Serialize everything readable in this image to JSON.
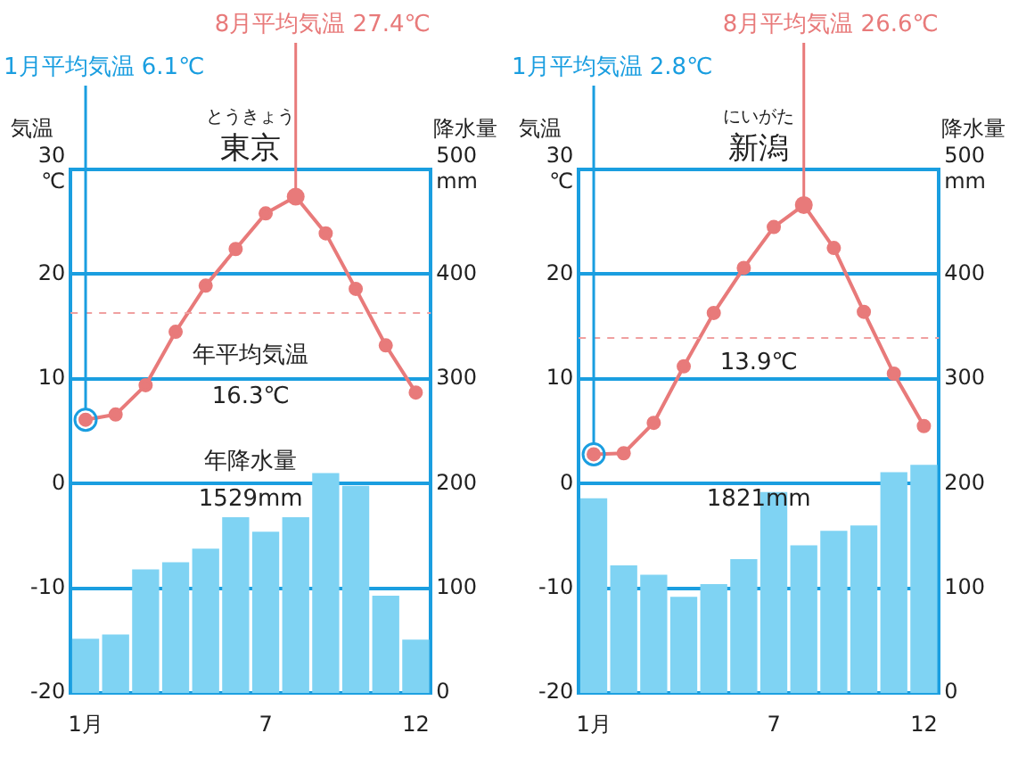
{
  "chart_data": [
    {
      "type": "bar",
      "subtitle": "とうきょう",
      "title": "東京",
      "ylabel": "気温",
      "y2label": "降水量",
      "categories": [
        "1月",
        null,
        null,
        null,
        null,
        null,
        "7",
        null,
        null,
        null,
        null,
        "12"
      ],
      "series": [
        {
          "axis": "y2",
          "color": "#7fd3f3",
          "values": [
            52,
            56,
            118,
            125,
            138,
            168,
            154,
            168,
            210,
            198,
            93,
            51
          ]
        },
        {
          "type": "line",
          "color": "#e87a7a",
          "values": [
            6.1,
            6.6,
            9.4,
            14.5,
            18.9,
            22.4,
            25.8,
            27.4,
            23.9,
            18.6,
            13.2,
            8.7
          ]
        }
      ],
      "ylim": [
        -20,
        30
      ],
      "yticks": [
        -20,
        -10,
        0,
        10,
        20,
        {
          "value": 30,
          "label": "30\n℃"
        }
      ],
      "y2lim": [
        0,
        500
      ],
      "y2ticks": [
        0,
        100,
        200,
        300,
        400,
        {
          "value": 500,
          "label": "500\nmm"
        }
      ],
      "grid": "y",
      "marker": "circle",
      "legend": false,
      "ref_lines": [
        {
          "axis": "y",
          "value": 16.3,
          "label": "年平均気温\n16.3℃",
          "color": "#f0a0a0",
          "line_style": "dashed"
        }
      ],
      "annotations": [
        "8月平均気温 27.4℃",
        {
          "text": "1月平均気温 6.1℃",
          "x": "1月",
          "y": 6.1
        },
        "年降水量\n1529mm"
      ]
    },
    {
      "type": "bar",
      "subtitle": "にいがた",
      "title": "新潟",
      "ylabel": "気温",
      "y2label": "降水量",
      "categories": [
        "1月",
        null,
        null,
        null,
        null,
        null,
        "7",
        null,
        null,
        null,
        null,
        "12"
      ],
      "series": [
        {
          "axis": "y2",
          "color": "#7fd3f3",
          "values": [
            186,
            122,
            113,
            92,
            104,
            128,
            192,
            141,
            155,
            160,
            211,
            218
          ]
        },
        {
          "type": "line",
          "color": "#e87a7a",
          "values": [
            2.8,
            2.9,
            5.8,
            11.2,
            16.3,
            20.6,
            24.5,
            26.6,
            22.5,
            16.4,
            10.5,
            5.5
          ]
        }
      ],
      "ylim": [
        -20,
        30
      ],
      "yticks": [
        -20,
        -10,
        0,
        10,
        20,
        {
          "value": 30,
          "label": "30\n℃"
        }
      ],
      "y2lim": [
        0,
        500
      ],
      "y2ticks": [
        0,
        100,
        200,
        300,
        400,
        {
          "value": 500,
          "label": "500\nmm"
        }
      ],
      "grid": "y",
      "marker": "circle",
      "legend": false,
      "ref_lines": [
        {
          "axis": "y",
          "value": 13.9,
          "label": "13.9℃",
          "color": "#f0a0a0",
          "line_style": "dashed"
        }
      ],
      "annotations": [
        "8月平均気温 26.6℃",
        {
          "text": "1月平均気温 2.8℃",
          "x": "1月",
          "y": 2.8
        },
        "1821mm"
      ]
    }
  ]
}
